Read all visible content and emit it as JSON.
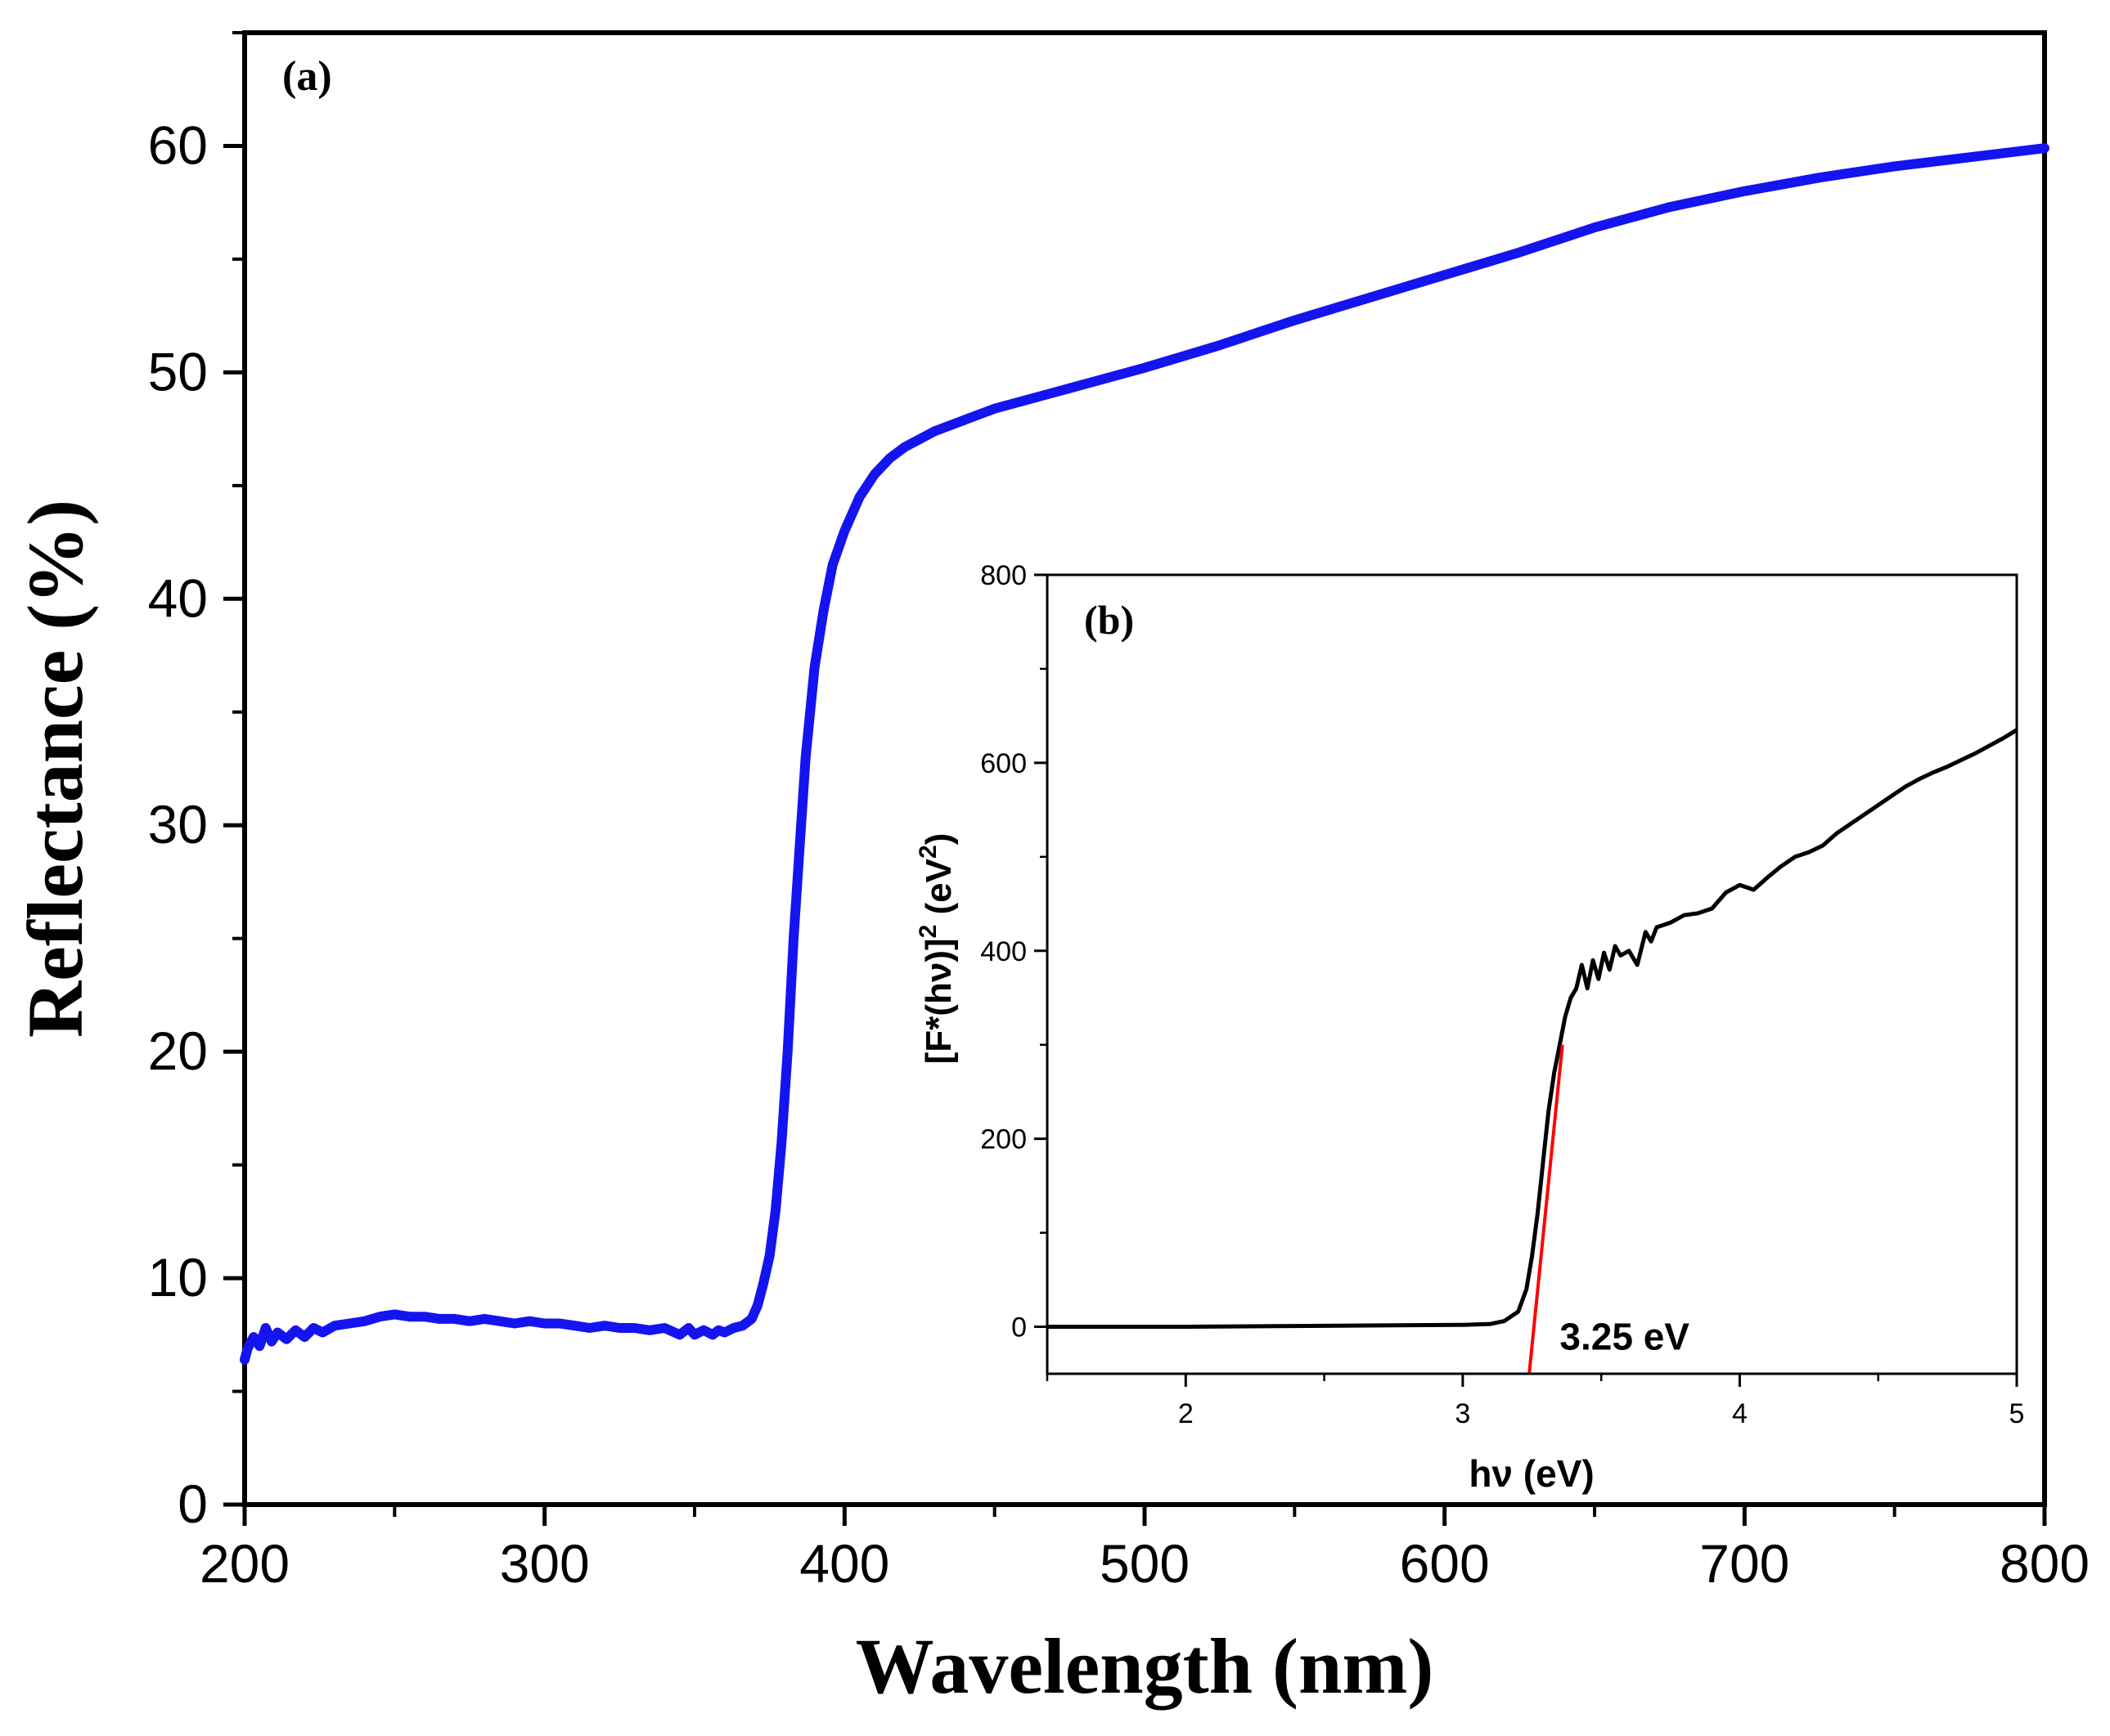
{
  "chart_data": [
    {
      "id": "main",
      "type": "line",
      "panel_label": "(a)",
      "title": "",
      "xlabel": "Wavelength (nm)",
      "ylabel": "Reflectance (%)",
      "xlim": [
        200,
        800
      ],
      "ylim": [
        0,
        65
      ],
      "xticks": [
        200,
        300,
        400,
        500,
        600,
        700,
        800
      ],
      "yticks": [
        0,
        10,
        20,
        30,
        40,
        50,
        60
      ],
      "grid": false,
      "series": [
        {
          "name": "Reflectance",
          "color": "#1414f0",
          "points": [
            [
              200,
              6.4
            ],
            [
              201,
              6.9
            ],
            [
              203,
              7.4
            ],
            [
              205,
              7.0
            ],
            [
              207,
              7.8
            ],
            [
              209,
              7.2
            ],
            [
              211,
              7.6
            ],
            [
              214,
              7.3
            ],
            [
              217,
              7.7
            ],
            [
              220,
              7.4
            ],
            [
              223,
              7.8
            ],
            [
              226,
              7.6
            ],
            [
              230,
              7.9
            ],
            [
              235,
              8.0
            ],
            [
              240,
              8.1
            ],
            [
              245,
              8.3
            ],
            [
              250,
              8.4
            ],
            [
              255,
              8.3
            ],
            [
              260,
              8.3
            ],
            [
              265,
              8.2
            ],
            [
              270,
              8.2
            ],
            [
              275,
              8.1
            ],
            [
              280,
              8.2
            ],
            [
              285,
              8.1
            ],
            [
              290,
              8.0
            ],
            [
              295,
              8.1
            ],
            [
              300,
              8.0
            ],
            [
              305,
              8.0
            ],
            [
              310,
              7.9
            ],
            [
              315,
              7.8
            ],
            [
              320,
              7.9
            ],
            [
              325,
              7.8
            ],
            [
              330,
              7.8
            ],
            [
              335,
              7.7
            ],
            [
              340,
              7.8
            ],
            [
              345,
              7.5
            ],
            [
              348,
              7.8
            ],
            [
              350,
              7.5
            ],
            [
              353,
              7.7
            ],
            [
              356,
              7.5
            ],
            [
              358,
              7.7
            ],
            [
              360,
              7.6
            ],
            [
              363,
              7.8
            ],
            [
              366,
              7.9
            ],
            [
              369,
              8.2
            ],
            [
              371,
              8.8
            ],
            [
              373,
              9.8
            ],
            [
              375,
              11.0
            ],
            [
              377,
              13.0
            ],
            [
              379,
              16.0
            ],
            [
              381,
              20.0
            ],
            [
              383,
              25.0
            ],
            [
              385,
              29.0
            ],
            [
              387,
              33.0
            ],
            [
              390,
              37.0
            ],
            [
              393,
              39.5
            ],
            [
              396,
              41.5
            ],
            [
              400,
              43.0
            ],
            [
              405,
              44.5
            ],
            [
              410,
              45.5
            ],
            [
              415,
              46.2
            ],
            [
              420,
              46.7
            ],
            [
              430,
              47.4
            ],
            [
              440,
              47.9
            ],
            [
              450,
              48.4
            ],
            [
              475,
              49.3
            ],
            [
              500,
              50.2
            ],
            [
              525,
              51.2
            ],
            [
              550,
              52.3
            ],
            [
              575,
              53.3
            ],
            [
              600,
              54.3
            ],
            [
              625,
              55.3
            ],
            [
              650,
              56.4
            ],
            [
              675,
              57.3
            ],
            [
              700,
              58.0
            ],
            [
              725,
              58.6
            ],
            [
              750,
              59.1
            ],
            [
              775,
              59.5
            ],
            [
              800,
              59.9
            ]
          ]
        }
      ]
    },
    {
      "id": "inset",
      "type": "line",
      "panel_label": "(b)",
      "title": "",
      "xlabel": "hν (eV)",
      "ylabel_main": "[F*(hν)]",
      "ylabel_sup1": "2",
      "ylabel_unit": " (eV",
      "ylabel_sup2": "2",
      "ylabel_close": ")",
      "xlim": [
        1.5,
        5.0
      ],
      "ylim": [
        -50,
        800
      ],
      "xticks": [
        2,
        3,
        4,
        5
      ],
      "yticks": [
        0,
        200,
        400,
        600,
        800
      ],
      "grid": false,
      "series": [
        {
          "name": "Tauc plot",
          "color": "#000000",
          "points": [
            [
              1.5,
              0
            ],
            [
              2.0,
              0
            ],
            [
              2.5,
              1
            ],
            [
              3.0,
              2
            ],
            [
              3.1,
              3
            ],
            [
              3.15,
              6
            ],
            [
              3.2,
              16
            ],
            [
              3.23,
              40
            ],
            [
              3.25,
              75
            ],
            [
              3.27,
              120
            ],
            [
              3.29,
              175
            ],
            [
              3.31,
              230
            ],
            [
              3.33,
              270
            ],
            [
              3.35,
              300
            ],
            [
              3.37,
              330
            ],
            [
              3.39,
              350
            ],
            [
              3.41,
              360
            ],
            [
              3.43,
              385
            ],
            [
              3.45,
              360
            ],
            [
              3.47,
              390
            ],
            [
              3.49,
              370
            ],
            [
              3.51,
              398
            ],
            [
              3.53,
              380
            ],
            [
              3.55,
              405
            ],
            [
              3.57,
              395
            ],
            [
              3.6,
              400
            ],
            [
              3.63,
              385
            ],
            [
              3.66,
              420
            ],
            [
              3.68,
              410
            ],
            [
              3.7,
              425
            ],
            [
              3.75,
              430
            ],
            [
              3.8,
              438
            ],
            [
              3.85,
              440
            ],
            [
              3.9,
              445
            ],
            [
              3.95,
              462
            ],
            [
              4.0,
              470
            ],
            [
              4.05,
              465
            ],
            [
              4.1,
              478
            ],
            [
              4.15,
              490
            ],
            [
              4.2,
              500
            ],
            [
              4.25,
              505
            ],
            [
              4.3,
              512
            ],
            [
              4.35,
              525
            ],
            [
              4.4,
              535
            ],
            [
              4.45,
              545
            ],
            [
              4.5,
              555
            ],
            [
              4.55,
              565
            ],
            [
              4.6,
              575
            ],
            [
              4.65,
              583
            ],
            [
              4.7,
              590
            ],
            [
              4.75,
              596
            ],
            [
              4.8,
              603
            ],
            [
              4.85,
              610
            ],
            [
              4.9,
              618
            ],
            [
              4.95,
              626
            ],
            [
              5.0,
              635
            ]
          ]
        },
        {
          "name": "Linear fit",
          "color": "#ff0000",
          "points": [
            [
              3.24,
              -50
            ],
            [
              3.36,
              300
            ]
          ]
        }
      ],
      "annotation": {
        "text": "3.25 eV",
        "x": 3.35,
        "y": -5,
        "color": "#ff0000"
      }
    }
  ]
}
